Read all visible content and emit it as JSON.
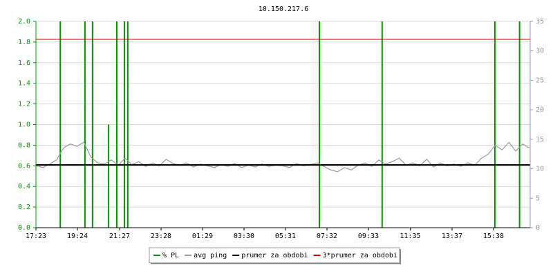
{
  "chart_data": {
    "type": "line",
    "title": "10.150.217.6",
    "xlim": [
      0,
      1442
    ],
    "xticks": [
      {
        "value": 0,
        "label": "17:23"
      },
      {
        "value": 121,
        "label": "19:24"
      },
      {
        "value": 244,
        "label": "21:27"
      },
      {
        "value": 365,
        "label": "23:28"
      },
      {
        "value": 486,
        "label": "01:29"
      },
      {
        "value": 607,
        "label": "03:30"
      },
      {
        "value": 728,
        "label": "05:31"
      },
      {
        "value": 849,
        "label": "07:32"
      },
      {
        "value": 970,
        "label": "09:33"
      },
      {
        "value": 1092,
        "label": "11:35"
      },
      {
        "value": 1214,
        "label": "13:37"
      },
      {
        "value": 1335,
        "label": "15:38"
      }
    ],
    "ylim": [
      0,
      2
    ],
    "yticks": [
      {
        "value": 0,
        "label": "0.0"
      },
      {
        "value": 0.2,
        "label": "0.2"
      },
      {
        "value": 0.4,
        "label": "0.4"
      },
      {
        "value": 0.6,
        "label": "0.6"
      },
      {
        "value": 0.8,
        "label": "0.8"
      },
      {
        "value": 1,
        "label": "1.0"
      },
      {
        "value": 1.2,
        "label": "1.2"
      },
      {
        "value": 1.4,
        "label": "1.4"
      },
      {
        "value": 1.6,
        "label": "1.6"
      },
      {
        "value": 1.8,
        "label": "1.8"
      },
      {
        "value": 2,
        "label": "2.0"
      }
    ],
    "y2lim": [
      0,
      35
    ],
    "y2ticks": [
      0,
      5,
      10,
      15,
      20,
      25,
      30,
      35
    ],
    "grid": true,
    "series": [
      {
        "name": "% PL",
        "color": "#009900",
        "kind": "spike",
        "axis": "y",
        "x": [
          71,
          143,
          165,
          212,
          236,
          258,
          268,
          827,
          1010,
          1339,
          1411
        ],
        "values": [
          2,
          2,
          2,
          1,
          2,
          2,
          2,
          2,
          2,
          2,
          2
        ]
      },
      {
        "name": "avg ping",
        "color": "#999999",
        "kind": "line",
        "axis": "y2",
        "x": [
          0,
          20,
          40,
          60,
          80,
          100,
          120,
          140,
          160,
          180,
          200,
          220,
          240,
          260,
          280,
          300,
          320,
          340,
          360,
          380,
          400,
          420,
          440,
          460,
          480,
          500,
          520,
          540,
          560,
          580,
          600,
          620,
          640,
          660,
          680,
          700,
          720,
          740,
          760,
          780,
          800,
          820,
          840,
          860,
          880,
          900,
          920,
          940,
          960,
          980,
          1000,
          1020,
          1040,
          1060,
          1080,
          1100,
          1120,
          1140,
          1160,
          1180,
          1200,
          1220,
          1240,
          1260,
          1280,
          1300,
          1320,
          1340,
          1360,
          1380,
          1400,
          1420,
          1440
        ],
        "values": [
          10.5,
          10.2,
          10.8,
          11.5,
          13.5,
          14.2,
          13.8,
          14.5,
          12,
          11,
          10.8,
          11.5,
          10.6,
          11.8,
          10.7,
          11.2,
          10.4,
          11,
          10.5,
          11.6,
          10.9,
          10.6,
          11,
          10.3,
          10.8,
          10.5,
          10.2,
          10.7,
          10.4,
          10.9,
          10.2,
          10.6,
          10.3,
          10.8,
          10.4,
          10.6,
          10.5,
          10.2,
          10.9,
          10.5,
          10.7,
          11,
          10.4,
          9.8,
          9.5,
          10.2,
          9.8,
          10.6,
          11,
          10.4,
          11.5,
          10.8,
          11.2,
          11.8,
          10.6,
          11,
          10.5,
          11.6,
          10.3,
          11,
          10.5,
          10.8,
          10.4,
          11,
          10.6,
          11.8,
          12.5,
          14,
          13.2,
          14.5,
          13,
          14.2,
          13.5
        ]
      },
      {
        "name": "prumer za obdobi",
        "color": "#000000",
        "kind": "hline",
        "axis": "y2",
        "values": [
          10.65
        ]
      },
      {
        "name": "3*prumer za obdobi",
        "color": "#cc0000",
        "kind": "hline",
        "axis": "y2",
        "values": [
          31.95
        ]
      }
    ]
  }
}
